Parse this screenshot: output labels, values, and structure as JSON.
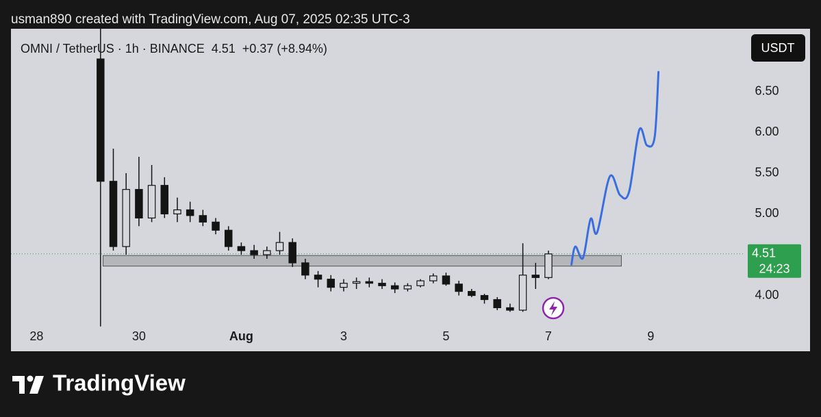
{
  "header": "usman890 created with TradingView.com, Aug 07, 2025 02:35 UTC-3",
  "footer": {
    "brand": "TradingView"
  },
  "chart_data": {
    "type": "candlestick",
    "title": "OMNI / TetherUS · 1h · BINANCE  4.51  +0.37 (+8.94%)",
    "currency": "USDT",
    "last_price": 4.51,
    "countdown": "24:23",
    "up_color": "#d6d7dc",
    "down_color": "#141414",
    "wick_color": "#141414",
    "grid": false,
    "xlim": [
      -2,
      55.2
    ],
    "ylim": [
      3.61,
      7.27
    ],
    "xticks": [
      {
        "value": 0,
        "label": "28"
      },
      {
        "value": 8,
        "label": "30"
      },
      {
        "value": 16,
        "label": "Aug"
      },
      {
        "value": 24,
        "label": "3"
      },
      {
        "value": 32,
        "label": "5"
      },
      {
        "value": 40,
        "label": "7"
      },
      {
        "value": 48,
        "label": "9"
      }
    ],
    "yticks": [
      {
        "value": 4,
        "label": "4.00"
      },
      {
        "value": 5,
        "label": "5.00"
      },
      {
        "value": 5.5,
        "label": "5.50"
      },
      {
        "value": 6,
        "label": "6.00"
      },
      {
        "value": 6.5,
        "label": "6.50"
      }
    ],
    "series": [
      {
        "x": [
          5,
          6,
          7,
          8,
          9,
          10,
          11,
          12,
          13,
          14,
          15,
          16,
          17,
          18,
          19,
          20,
          21,
          22,
          23,
          24,
          25,
          26,
          27,
          28,
          29,
          30,
          31,
          32,
          33,
          34,
          35,
          36,
          37,
          38,
          39,
          40
        ],
        "open": [
          6.9,
          5.4,
          4.6,
          5.3,
          4.95,
          5.35,
          5.0,
          5.05,
          4.98,
          4.9,
          4.8,
          4.6,
          4.55,
          4.5,
          4.55,
          4.65,
          4.4,
          4.25,
          4.2,
          4.1,
          4.15,
          4.17,
          4.15,
          4.12,
          4.08,
          4.12,
          4.18,
          4.24,
          4.14,
          4.05,
          4.0,
          3.95,
          3.85,
          3.82,
          4.25,
          4.22
        ],
        "high": [
          7.3,
          5.8,
          5.5,
          5.7,
          5.6,
          5.45,
          5.2,
          5.15,
          5.05,
          4.95,
          4.85,
          4.65,
          4.62,
          4.6,
          4.78,
          4.7,
          4.45,
          4.3,
          4.25,
          4.2,
          4.22,
          4.22,
          4.2,
          4.16,
          4.15,
          4.2,
          4.27,
          4.28,
          4.18,
          4.08,
          4.02,
          3.98,
          3.9,
          4.64,
          4.4,
          4.55
        ],
        "low": [
          3.62,
          4.55,
          4.5,
          4.85,
          4.9,
          4.95,
          4.9,
          4.9,
          4.85,
          4.75,
          4.55,
          4.5,
          4.45,
          4.45,
          4.5,
          4.35,
          4.2,
          4.1,
          4.05,
          4.05,
          4.08,
          4.1,
          4.08,
          4.03,
          4.05,
          4.1,
          4.15,
          4.12,
          4.0,
          3.98,
          3.9,
          3.82,
          3.8,
          3.8,
          4.08,
          4.2
        ],
        "close": [
          5.4,
          4.6,
          5.3,
          4.95,
          5.35,
          5.0,
          5.05,
          4.98,
          4.9,
          4.8,
          4.6,
          4.55,
          4.5,
          4.55,
          4.65,
          4.4,
          4.25,
          4.2,
          4.1,
          4.15,
          4.17,
          4.15,
          4.12,
          4.08,
          4.12,
          4.18,
          4.24,
          4.14,
          4.05,
          4.0,
          3.95,
          3.85,
          3.82,
          4.25,
          4.22,
          4.51
        ]
      }
    ],
    "zone": {
      "x": [
        5.2,
        45.7
      ],
      "y": [
        4.36,
        4.49
      ],
      "color": "#9a9a9e"
    },
    "projection": {
      "color": "#3a6ee0",
      "x": [
        41.8,
        42.1,
        42.7,
        43.3,
        43.8,
        44.8,
        45.6,
        46.3,
        47.1,
        47.7,
        48.3,
        48.6
      ],
      "y": [
        4.38,
        4.6,
        4.46,
        4.94,
        4.77,
        5.46,
        5.23,
        5.27,
        6.03,
        5.84,
        5.94,
        6.74
      ]
    }
  }
}
